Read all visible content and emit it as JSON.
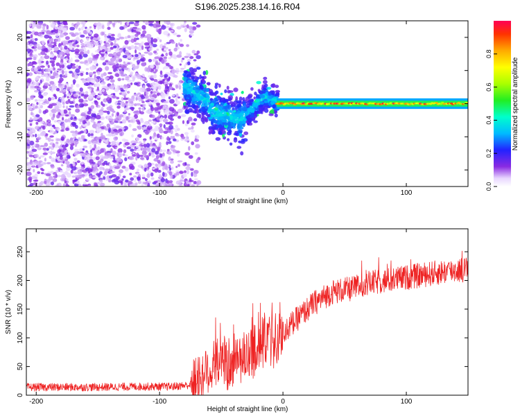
{
  "title": "S196.2025.238.14.16.R04",
  "chart_data": [
    {
      "type": "heatmap",
      "title": "S196.2025.238.14.16.R04",
      "xlabel": "Height of straight line (km)",
      "ylabel": "Frequency (Hz)",
      "xlim": [
        -208,
        150
      ],
      "ylim": [
        -25,
        25
      ],
      "xticks": [
        -200,
        -100,
        0,
        100
      ],
      "yticks": [
        -20,
        -10,
        0,
        10,
        20
      ],
      "colorbar": {
        "label": "Normalized spectral amplitude",
        "range": [
          0,
          1
        ],
        "ticks": [
          0.0,
          0.2,
          0.4,
          0.6,
          0.8
        ],
        "tick_labels": [
          "0.0",
          "0.2",
          "0.4",
          "0.6",
          "0.8"
        ]
      },
      "regions": [
        {
          "name": "broadband noise",
          "x_range": [
            -208,
            -78
          ],
          "freq_range": [
            -25,
            25
          ],
          "amplitude": 0.05
        },
        {
          "name": "transition",
          "x_range": [
            -78,
            -5
          ],
          "freq_range": [
            -10,
            8
          ],
          "amplitude": 0.15
        },
        {
          "name": "carrier line",
          "x_range": [
            -5,
            150
          ],
          "freq_center": 0,
          "amplitude": 0.9
        }
      ]
    },
    {
      "type": "line",
      "xlabel": "Height of straight line (km)",
      "ylabel": "SNR (10 * v/v)",
      "xlim": [
        -208,
        150
      ],
      "ylim": [
        0,
        290
      ],
      "xticks": [
        -200,
        -100,
        0,
        100
      ],
      "yticks": [
        0,
        50,
        100,
        150,
        200,
        250
      ],
      "color": "#ee2222",
      "series": [
        {
          "name": "SNR",
          "x": [
            -208,
            -180,
            -150,
            -120,
            -90,
            -75,
            -65,
            -55,
            -45,
            -35,
            -25,
            -15,
            -5,
            5,
            15,
            25,
            40,
            55,
            70,
            85,
            100,
            115,
            130,
            150
          ],
          "y": [
            14,
            14,
            14,
            15,
            15,
            18,
            35,
            50,
            55,
            60,
            75,
            90,
            95,
            120,
            140,
            160,
            180,
            185,
            195,
            200,
            205,
            210,
            215,
            220
          ]
        }
      ]
    }
  ]
}
